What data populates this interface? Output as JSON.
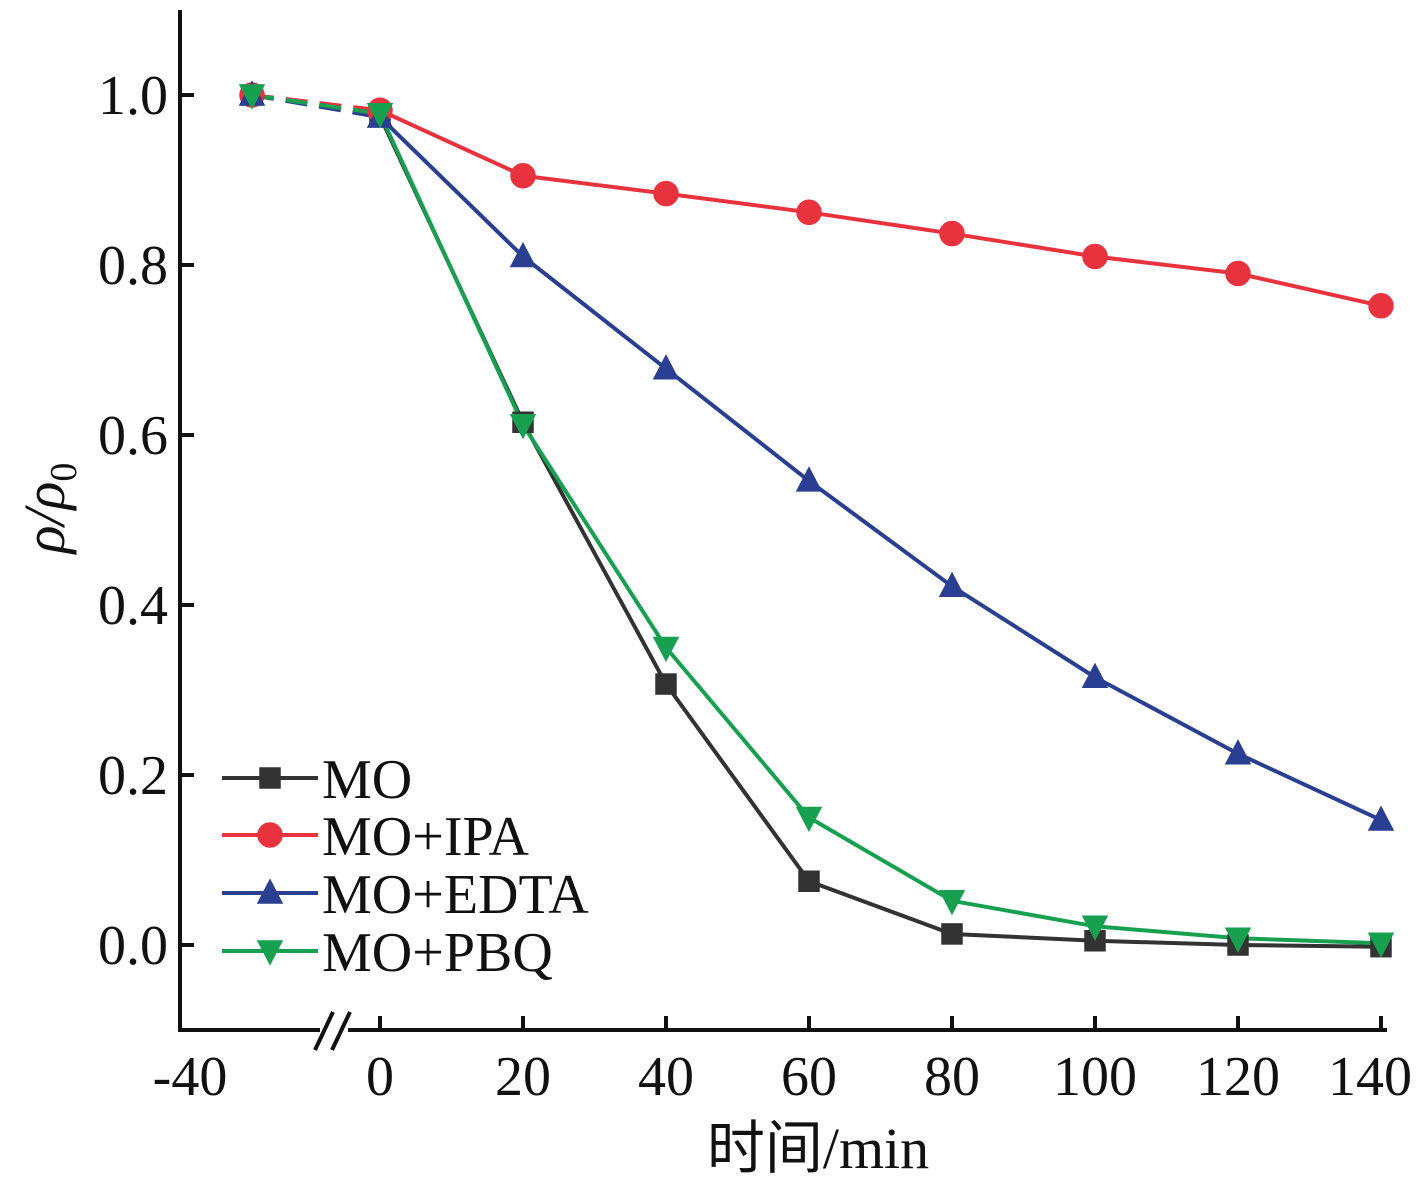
{
  "chart_data": {
    "type": "line",
    "title": "",
    "xlabel": "时间/min",
    "ylabel": {
      "main": "ρ/ρ",
      "sub": "0"
    },
    "xlim": [
      -40,
      140
    ],
    "ylim": [
      -0.1,
      1.1
    ],
    "x_axis_break": true,
    "x_ticks": [
      -40,
      0,
      20,
      40,
      60,
      80,
      100,
      120,
      140
    ],
    "y_ticks": [
      "1.0",
      "0.8",
      "0.6",
      "0.4",
      "0.2",
      "0.0"
    ],
    "y_tick_values": [
      1.0,
      0.8,
      0.6,
      0.4,
      0.2,
      0.0
    ],
    "grid": false,
    "legend_position": "bottom-left",
    "x": [
      -30,
      0,
      20,
      40,
      60,
      80,
      100,
      120,
      140
    ],
    "series": [
      {
        "name": "MO",
        "color": "#333333",
        "marker": "square",
        "values": [
          1.0,
          0.975,
          0.615,
          0.307,
          0.075,
          0.013,
          0.005,
          0.0,
          -0.002
        ]
      },
      {
        "name": "MO+IPA",
        "color": "#e8333f",
        "marker": "circle",
        "values": [
          1.0,
          0.982,
          0.905,
          0.884,
          0.862,
          0.837,
          0.81,
          0.79,
          0.752
        ]
      },
      {
        "name": "MO+EDTA",
        "color": "#2a3f91",
        "marker": "triangle-up",
        "values": [
          1.0,
          0.974,
          0.81,
          0.678,
          0.546,
          0.422,
          0.315,
          0.225,
          0.147
        ]
      },
      {
        "name": "MO+PBQ",
        "color": "#17a050",
        "marker": "triangle-down",
        "values": [
          1.0,
          0.978,
          0.612,
          0.35,
          0.15,
          0.052,
          0.022,
          0.008,
          0.002
        ]
      }
    ]
  }
}
